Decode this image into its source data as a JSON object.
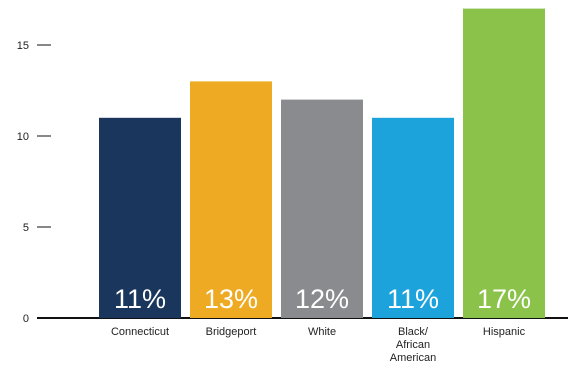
{
  "chart_data": {
    "type": "bar",
    "categories": [
      "Connecticut",
      "Bridgeport",
      "White",
      "Black/ African American",
      "Hispanic"
    ],
    "category_lines": [
      [
        "Connecticut"
      ],
      [
        "Bridgeport"
      ],
      [
        "White"
      ],
      [
        "Black/",
        "African",
        "American"
      ],
      [
        "Hispanic"
      ]
    ],
    "values": [
      11,
      13,
      12,
      11,
      17
    ],
    "data_labels": [
      "11%",
      "13%",
      "12%",
      "11%",
      "17%"
    ],
    "colors": [
      "#1b365d",
      "#eeaa22",
      "#898b8e",
      "#1da3dc",
      "#8bc34a"
    ],
    "yticks": [
      0,
      5,
      10,
      15
    ],
    "ylim": [
      0,
      17
    ],
    "grid": false,
    "title": "",
    "xlabel": "",
    "ylabel": ""
  }
}
